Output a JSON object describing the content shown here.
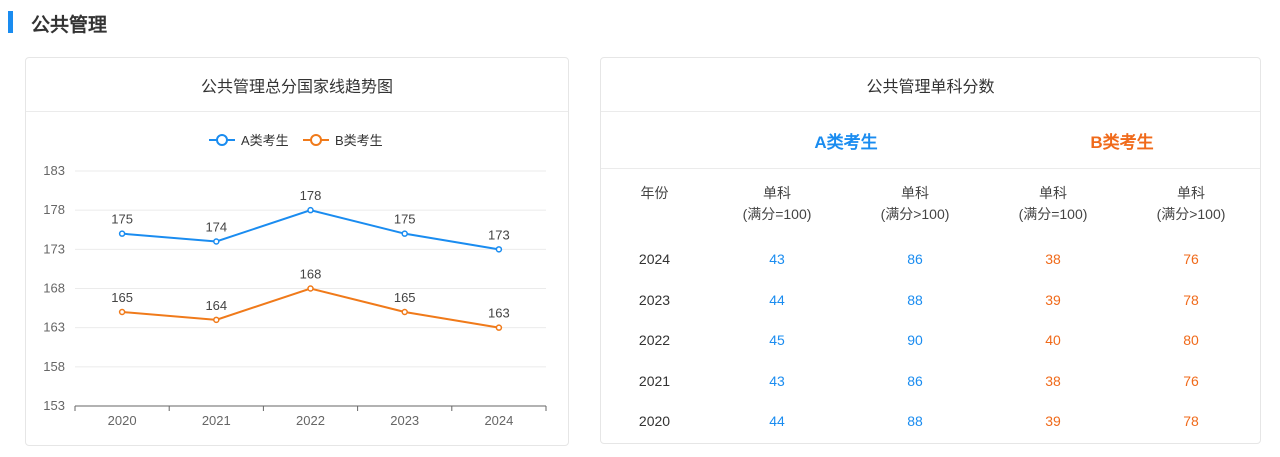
{
  "section_title": "公共管理",
  "chart_data": {
    "type": "line",
    "title": "公共管理总分国家线趋势图",
    "categories": [
      "2020",
      "2021",
      "2022",
      "2023",
      "2024"
    ],
    "series": [
      {
        "name": "A类考生",
        "color": "#1a8cf0",
        "values": [
          175,
          174,
          178,
          175,
          173
        ]
      },
      {
        "name": "B类考生",
        "color": "#f07a1a",
        "values": [
          165,
          164,
          168,
          165,
          163
        ]
      }
    ],
    "yticks": [
      153,
      158,
      163,
      168,
      173,
      178,
      183
    ],
    "ylim": [
      153,
      183
    ],
    "legend": "top-center",
    "grid": true
  },
  "table": {
    "title": "公共管理单科分数",
    "group_a": "A类考生",
    "group_b": "B类考生",
    "headers": [
      [
        "年份",
        ""
      ],
      [
        "单科",
        "(满分=100)"
      ],
      [
        "单科",
        "(满分>100)"
      ],
      [
        "单科",
        "(满分=100)"
      ],
      [
        "单科",
        "(满分>100)"
      ]
    ],
    "rows": [
      [
        "2024",
        "43",
        "86",
        "38",
        "76"
      ],
      [
        "2023",
        "44",
        "88",
        "39",
        "78"
      ],
      [
        "2022",
        "45",
        "90",
        "40",
        "80"
      ],
      [
        "2021",
        "43",
        "86",
        "38",
        "76"
      ],
      [
        "2020",
        "44",
        "88",
        "39",
        "78"
      ]
    ],
    "colors": {
      "a": "#1a8cf0",
      "b": "#f06a1a"
    }
  }
}
